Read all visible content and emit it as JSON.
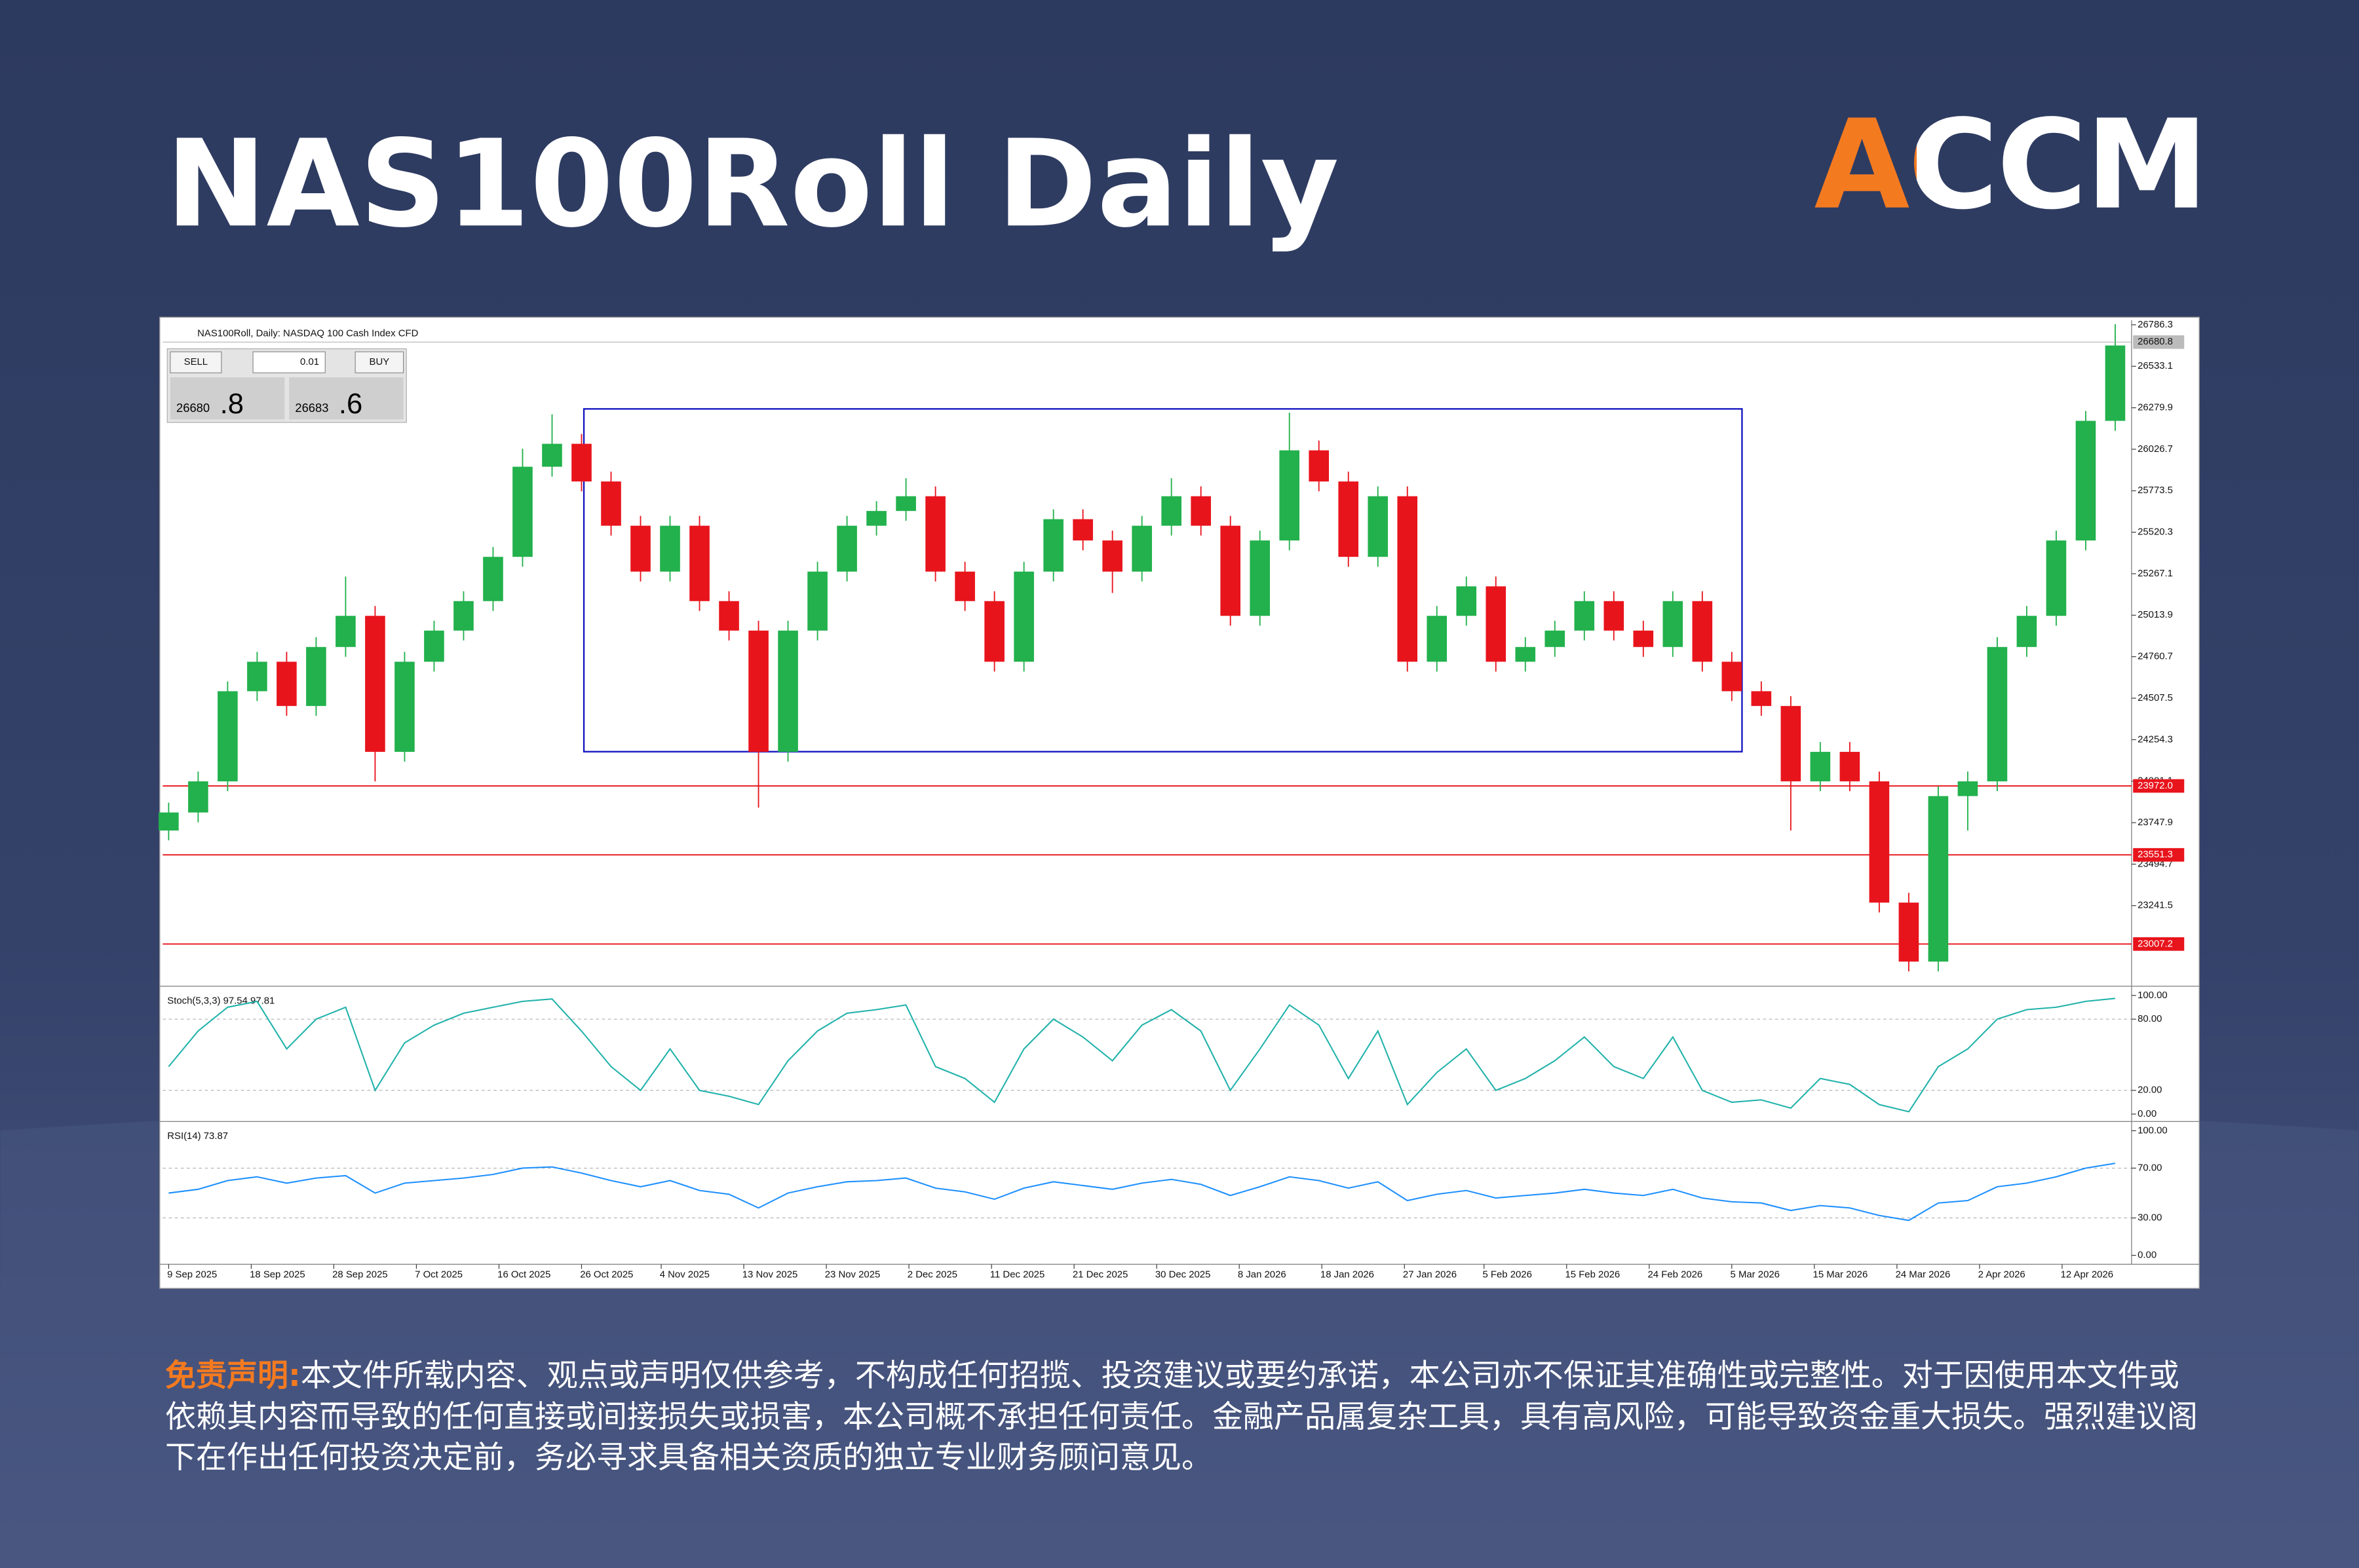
{
  "header": {
    "title": "NAS100Roll Daily",
    "logo": "ACCM"
  },
  "chart_data": {
    "type": "candlestick",
    "title": "NAS100Roll, Daily: NASDAQ 100 Cash Index CFD",
    "up_color": "#22b14c",
    "down_color": "#e8141c",
    "open": [
      23700,
      23810,
      24000,
      24550,
      24730,
      24460,
      24820,
      25010,
      24180,
      24730,
      24920,
      25100,
      25370,
      25920,
      26060,
      25830,
      25560,
      25280,
      25560,
      25100,
      24920,
      24180,
      24920,
      25280,
      25560,
      25650,
      25740,
      25280,
      25100,
      24730,
      25280,
      25600,
      25470,
      25280,
      25560,
      25740,
      25560,
      25010,
      25470,
      26020,
      25830,
      25370,
      25740,
      24730,
      25010,
      25190,
      24730,
      24820,
      24920,
      25100,
      24920,
      24820,
      25100,
      24730,
      24550,
      24460,
      24000,
      24180,
      24000,
      23260,
      22900,
      23910,
      24000,
      24820,
      25010,
      25470,
      26200
    ],
    "high": [
      23870,
      24060,
      24610,
      24790,
      24790,
      24880,
      25250,
      25070,
      24790,
      24980,
      25160,
      25430,
      26030,
      26240,
      26120,
      25890,
      25620,
      25620,
      25620,
      25160,
      24980,
      24980,
      25340,
      25620,
      25710,
      25850,
      25800,
      25340,
      25160,
      25340,
      25660,
      25660,
      25530,
      25620,
      25850,
      25800,
      25620,
      25530,
      26250,
      26080,
      25890,
      25800,
      25800,
      25070,
      25250,
      25250,
      24880,
      24980,
      25160,
      25160,
      24980,
      25160,
      25160,
      24790,
      24610,
      24520,
      24240,
      24240,
      24060,
      23320,
      23970,
      24060,
      24880,
      25070,
      25530,
      26260,
      26790
    ],
    "low": [
      23640,
      23750,
      23940,
      24490,
      24400,
      24400,
      24760,
      24000,
      24120,
      24670,
      24860,
      25040,
      25310,
      25860,
      25770,
      25500,
      25220,
      25220,
      25040,
      24860,
      23840,
      24120,
      24860,
      25220,
      25500,
      25590,
      25220,
      25040,
      24670,
      24670,
      25220,
      25410,
      25150,
      25220,
      25500,
      25500,
      24950,
      24950,
      25410,
      25770,
      25310,
      25310,
      24670,
      24670,
      24950,
      24670,
      24670,
      24760,
      24860,
      24860,
      24760,
      24760,
      24670,
      24490,
      24400,
      23700,
      23940,
      23940,
      23200,
      22840,
      22840,
      23700,
      23940,
      24760,
      24950,
      25410,
      26140
    ],
    "close": [
      23810,
      24000,
      24550,
      24730,
      24460,
      24820,
      25010,
      24180,
      24730,
      24920,
      25100,
      25370,
      25920,
      26060,
      25830,
      25560,
      25280,
      25560,
      25100,
      24920,
      24180,
      24920,
      25280,
      25560,
      25650,
      25740,
      25280,
      25100,
      24730,
      25280,
      25600,
      25470,
      25280,
      25560,
      25740,
      25560,
      25010,
      25470,
      26020,
      25830,
      25370,
      25740,
      24730,
      25010,
      25190,
      24730,
      24820,
      24920,
      25100,
      24920,
      24820,
      25100,
      24730,
      24550,
      24460,
      24000,
      24180,
      24000,
      23260,
      22900,
      23910,
      24000,
      24820,
      25010,
      25470,
      26200,
      26660
    ],
    "xlim": [
      -0.2,
      66.3
    ],
    "xticks": [
      {
        "value": 0,
        "label": "9 Sep 2025"
      },
      {
        "value": 2.8,
        "label": "18 Sep 2025"
      },
      {
        "value": 5.6,
        "label": "28 Sep 2025"
      },
      {
        "value": 8.4,
        "label": "7 Oct 2025"
      },
      {
        "value": 11.2,
        "label": "16 Oct 2025"
      },
      {
        "value": 14.0,
        "label": "26 Oct 2025"
      },
      {
        "value": 16.7,
        "label": "4 Nov 2025"
      },
      {
        "value": 19.5,
        "label": "13 Nov 2025"
      },
      {
        "value": 22.3,
        "label": "23 Nov 2025"
      },
      {
        "value": 25.1,
        "label": "2 Dec 2025"
      },
      {
        "value": 27.9,
        "label": "11 Dec 2025"
      },
      {
        "value": 30.7,
        "label": "21 Dec 2025"
      },
      {
        "value": 33.5,
        "label": "30 Dec 2025"
      },
      {
        "value": 36.3,
        "label": "8 Jan 2026"
      },
      {
        "value": 39.1,
        "label": "18 Jan 2026"
      },
      {
        "value": 41.9,
        "label": "27 Jan 2026"
      },
      {
        "value": 44.6,
        "label": "5 Feb 2026"
      },
      {
        "value": 47.4,
        "label": "15 Feb 2026"
      },
      {
        "value": 50.2,
        "label": "24 Feb 2026"
      },
      {
        "value": 53.0,
        "label": "5 Mar 2026"
      },
      {
        "value": 55.8,
        "label": "15 Mar 2026"
      },
      {
        "value": 58.6,
        "label": "24 Mar 2026"
      },
      {
        "value": 61.4,
        "label": "2 Apr 2026"
      },
      {
        "value": 64.2,
        "label": "12 Apr 2026"
      }
    ],
    "ylim": [
      22759,
      26805
    ],
    "yticks": [
      26786.3,
      26533.1,
      26279.9,
      26026.7,
      25773.5,
      25520.3,
      25267.1,
      25013.9,
      24760.7,
      24507.5,
      24254.3,
      24001.1,
      23747.9,
      23494.7,
      23241.5
    ],
    "current_price": 26680.8,
    "price_lines": [
      {
        "value": 23972,
        "label": "23972.0",
        "color": "#e8141c"
      },
      {
        "value": 23551.3,
        "label": "23551.3",
        "color": "#e8141c"
      },
      {
        "value": 23007.2,
        "label": "23007.2",
        "color": "#e8141c"
      }
    ],
    "stochastic": {
      "label": "Stoch(5,3,3) 97.54 97.81",
      "color": "#20b2aa",
      "ylim": [
        -5,
        104
      ],
      "yticks": [
        {
          "value": 100,
          "label": "100.00"
        },
        {
          "value": 80,
          "label": "80.00"
        },
        {
          "value": 20,
          "label": "20.00"
        },
        {
          "value": 0,
          "label": "0.00"
        }
      ],
      "values": [
        40,
        70,
        90,
        95,
        55,
        80,
        90,
        20,
        60,
        75,
        85,
        90,
        95,
        97,
        70,
        40,
        20,
        55,
        20,
        15,
        8,
        45,
        70,
        85,
        88,
        92,
        40,
        30,
        10,
        55,
        80,
        65,
        45,
        75,
        88,
        70,
        20,
        55,
        92,
        75,
        30,
        70,
        8,
        35,
        55,
        20,
        30,
        45,
        65,
        40,
        30,
        65,
        20,
        10,
        12,
        5,
        30,
        25,
        8,
        2,
        40,
        55,
        80,
        88,
        90,
        95,
        97.54
      ]
    },
    "rsi": {
      "label": "RSI(14) 73.87",
      "color": "#1e90ff",
      "ylim": [
        -6,
        105
      ],
      "yticks": [
        {
          "value": 100,
          "label": "100.00"
        },
        {
          "value": 70,
          "label": "70.00"
        },
        {
          "value": 30,
          "label": "30.00"
        },
        {
          "value": 0,
          "label": "0.00"
        }
      ],
      "values": [
        50,
        53,
        60,
        63,
        58,
        62,
        64,
        50,
        58,
        60,
        62,
        65,
        70,
        71,
        66,
        60,
        55,
        60,
        52,
        49,
        38,
        50,
        55,
        59,
        60,
        62,
        54,
        51,
        45,
        54,
        59,
        56,
        53,
        58,
        61,
        57,
        48,
        55,
        63,
        60,
        54,
        59,
        44,
        49,
        52,
        46,
        48,
        50,
        53,
        50,
        48,
        53,
        46,
        43,
        42,
        36,
        40,
        38,
        32,
        28,
        42,
        44,
        55,
        58,
        63,
        70,
        73.87
      ]
    }
  },
  "trade_panel": {
    "sell": "SELL",
    "lot": "0.01",
    "buy": "BUY",
    "bid_main": "26680",
    "bid_frac": ".8",
    "ask_main": "26683",
    "ask_frac": ".6"
  },
  "disclaimer": {
    "label": "免责声明:",
    "text": "本文件所载内容、观点或声明仅供参考，不构成任何招揽、投资建议或要约承诺，本公司亦不保证其准确性或完整性。对于因使用本文件或依赖其内容而导致的任何直接或间接损失或损害，本公司概不承担任何责任。金融产品属复杂工具，具有高风险，可能导致资金重大损失。强烈建议阁下在作出任何投资决定前，务必寻求具备相关资质的独立专业财务顾问意见。"
  }
}
